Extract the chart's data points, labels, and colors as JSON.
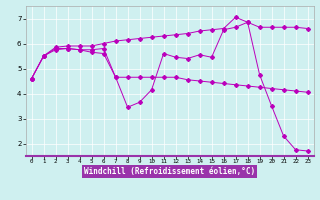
{
  "xlabel": "Windchill (Refroidissement éolien,°C)",
  "background_color": "#cff0f0",
  "line_color": "#bb00bb",
  "axis_bg": "#cff0f0",
  "xlim": [
    -0.5,
    23.5
  ],
  "ylim": [
    1.5,
    7.5
  ],
  "xticks": [
    0,
    1,
    2,
    3,
    4,
    5,
    6,
    7,
    8,
    9,
    10,
    11,
    12,
    13,
    14,
    15,
    16,
    17,
    18,
    19,
    20,
    21,
    22,
    23
  ],
  "yticks": [
    2,
    3,
    4,
    5,
    6,
    7
  ],
  "curve1_x": [
    0,
    1,
    2,
    3,
    4,
    5,
    6,
    7,
    8,
    9,
    10,
    11,
    12,
    13,
    14,
    15,
    16,
    17,
    18,
    19,
    20,
    21,
    22,
    23
  ],
  "curve1_y": [
    4.6,
    5.5,
    5.75,
    5.8,
    5.75,
    5.65,
    5.6,
    4.65,
    4.65,
    4.65,
    4.65,
    4.65,
    4.65,
    4.55,
    4.5,
    4.45,
    4.4,
    4.35,
    4.3,
    4.25,
    4.2,
    4.15,
    4.1,
    4.05
  ],
  "curve2_x": [
    0,
    1,
    2,
    3,
    4,
    5,
    6,
    7,
    8,
    9,
    10,
    11,
    12,
    13,
    14,
    15,
    16,
    17,
    18,
    19,
    20,
    21,
    22,
    23
  ],
  "curve2_y": [
    4.6,
    5.5,
    5.8,
    5.8,
    5.75,
    5.75,
    5.8,
    4.65,
    3.45,
    3.65,
    4.15,
    5.6,
    5.45,
    5.4,
    5.55,
    5.45,
    6.55,
    6.65,
    6.85,
    4.75,
    3.5,
    2.3,
    1.75,
    1.7
  ],
  "curve3_x": [
    0,
    1,
    2,
    3,
    4,
    5,
    6,
    7,
    8,
    9,
    10,
    11,
    12,
    13,
    14,
    15,
    16,
    17,
    18,
    19,
    20,
    21,
    22,
    23
  ],
  "curve3_y": [
    4.6,
    5.5,
    5.85,
    5.9,
    5.9,
    5.9,
    6.0,
    6.1,
    6.15,
    6.2,
    6.25,
    6.3,
    6.35,
    6.4,
    6.5,
    6.55,
    6.6,
    7.05,
    6.85,
    6.65,
    6.65,
    6.65,
    6.65,
    6.6
  ]
}
